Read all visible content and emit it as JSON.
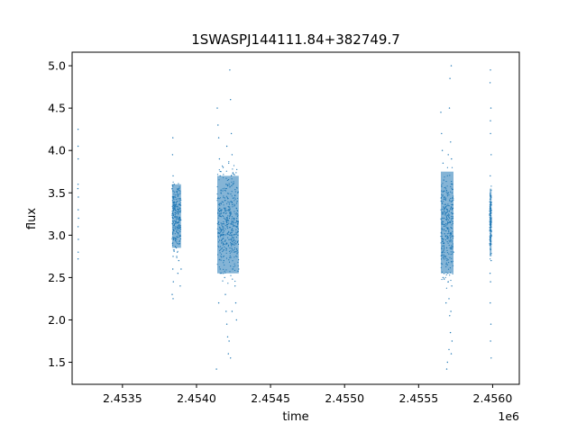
{
  "chart_data": {
    "type": "scatter",
    "title": "1SWASPJ144111.84+382749.7",
    "xlabel": "time",
    "ylabel": "flux",
    "x_offset_label": "1e6",
    "xlim": [
      2453160,
      2456180
    ],
    "ylim": [
      1.24,
      5.16
    ],
    "x_ticks": [
      2453500,
      2454000,
      2454500,
      2455000,
      2455500,
      2456000
    ],
    "x_tick_labels": [
      "2.4535",
      "2.4540",
      "2.4545",
      "2.4550",
      "2.4555",
      "2.4560"
    ],
    "y_ticks": [
      1.5,
      2.0,
      2.5,
      3.0,
      3.5,
      4.0,
      4.5,
      5.0
    ],
    "y_tick_labels": [
      "1.5",
      "2.0",
      "2.5",
      "3.0",
      "3.5",
      "4.0",
      "4.5",
      "5.0"
    ],
    "grid": false,
    "marker_color": "#1f77b4",
    "points": [
      [
        2453200,
        4.25
      ],
      [
        2453201,
        3.9
      ],
      [
        2453200,
        3.6
      ],
      [
        2453202,
        3.45
      ],
      [
        2453201,
        3.3
      ],
      [
        2453200,
        3.1
      ],
      [
        2453202,
        2.95
      ],
      [
        2453201,
        2.8
      ],
      [
        2453200,
        2.72
      ],
      [
        2453199,
        3.55
      ],
      [
        2453203,
        3.2
      ],
      [
        2453200,
        4.05
      ],
      [
        2453840,
        4.15
      ],
      [
        2453838,
        3.95
      ],
      [
        2453842,
        3.7
      ],
      [
        2453836,
        3.55
      ],
      [
        2453844,
        3.35
      ],
      [
        2453840,
        3.2
      ],
      [
        2453846,
        3.05
      ],
      [
        2453838,
        2.9
      ],
      [
        2453842,
        2.75
      ],
      [
        2453840,
        2.6
      ],
      [
        2453844,
        2.45
      ],
      [
        2453836,
        2.3
      ],
      [
        2453842,
        2.25
      ],
      [
        2453850,
        3.6
      ],
      [
        2453856,
        3.3
      ],
      [
        2453860,
        3.1
      ],
      [
        2453864,
        2.85
      ],
      [
        2453870,
        3.4
      ],
      [
        2453876,
        3.25
      ],
      [
        2453880,
        3.55
      ],
      [
        2453886,
        2.9
      ],
      [
        2453880,
        2.7
      ],
      [
        2453874,
        2.55
      ],
      [
        2453890,
        3.0
      ],
      [
        2453896,
        2.6
      ],
      [
        2453890,
        2.4
      ],
      [
        2454140,
        4.5
      ],
      [
        2454145,
        4.3
      ],
      [
        2454150,
        4.15
      ],
      [
        2454155,
        3.9
      ],
      [
        2454160,
        3.7
      ],
      [
        2454165,
        3.5
      ],
      [
        2454170,
        3.3
      ],
      [
        2454175,
        3.1
      ],
      [
        2454180,
        2.9
      ],
      [
        2454185,
        2.7
      ],
      [
        2454190,
        2.5
      ],
      [
        2454195,
        2.3
      ],
      [
        2454200,
        2.1
      ],
      [
        2454205,
        1.95
      ],
      [
        2454210,
        1.8
      ],
      [
        2454215,
        1.6
      ],
      [
        2454135,
        1.42
      ],
      [
        2454225,
        4.95
      ],
      [
        2454230,
        4.6
      ],
      [
        2454235,
        4.2
      ],
      [
        2454240,
        3.95
      ],
      [
        2454245,
        3.6
      ],
      [
        2454250,
        3.2
      ],
      [
        2454255,
        2.8
      ],
      [
        2454260,
        2.4
      ],
      [
        2454265,
        2.2
      ],
      [
        2454270,
        2.0
      ],
      [
        2454230,
        1.55
      ],
      [
        2454220,
        1.75
      ],
      [
        2454275,
        3.4
      ],
      [
        2454280,
        3.0
      ],
      [
        2454285,
        2.6
      ],
      [
        2454180,
        3.8
      ],
      [
        2454200,
        3.6
      ],
      [
        2454160,
        2.6
      ],
      [
        2454150,
        2.2
      ],
      [
        2454240,
        2.1
      ],
      [
        2454205,
        4.05
      ],
      [
        2455650,
        4.45
      ],
      [
        2455655,
        4.2
      ],
      [
        2455660,
        4.0
      ],
      [
        2455665,
        3.85
      ],
      [
        2455670,
        3.65
      ],
      [
        2455675,
        3.45
      ],
      [
        2455680,
        3.25
      ],
      [
        2455685,
        3.05
      ],
      [
        2455690,
        2.85
      ],
      [
        2455695,
        2.65
      ],
      [
        2455700,
        2.45
      ],
      [
        2455705,
        2.25
      ],
      [
        2455710,
        2.05
      ],
      [
        2455715,
        1.85
      ],
      [
        2455705,
        1.65
      ],
      [
        2455695,
        1.5
      ],
      [
        2455690,
        1.42
      ],
      [
        2455720,
        5.0
      ],
      [
        2455712,
        4.85
      ],
      [
        2455708,
        4.5
      ],
      [
        2455716,
        4.1
      ],
      [
        2455722,
        3.9
      ],
      [
        2455728,
        3.6
      ],
      [
        2455732,
        3.2
      ],
      [
        2455736,
        2.8
      ],
      [
        2455724,
        2.4
      ],
      [
        2455718,
        2.1
      ],
      [
        2455726,
        1.75
      ],
      [
        2455700,
        3.95
      ],
      [
        2455685,
        2.2
      ],
      [
        2455665,
        2.5
      ],
      [
        2455672,
        3.2
      ],
      [
        2455720,
        1.6
      ],
      [
        2455985,
        4.95
      ],
      [
        2455983,
        4.8
      ],
      [
        2455988,
        4.5
      ],
      [
        2455986,
        4.2
      ],
      [
        2455990,
        3.95
      ],
      [
        2455984,
        3.7
      ],
      [
        2455988,
        3.45
      ],
      [
        2455986,
        3.2
      ],
      [
        2455982,
        2.95
      ],
      [
        2455990,
        2.7
      ],
      [
        2455986,
        2.45
      ],
      [
        2455984,
        2.2
      ],
      [
        2455988,
        1.95
      ],
      [
        2455986,
        1.75
      ],
      [
        2455990,
        1.55
      ],
      [
        2455985,
        4.35
      ],
      [
        2455987,
        3.05
      ],
      [
        2455983,
        2.55
      ]
    ],
    "dense_bands": [
      {
        "x": [
          2454140,
          2454285
        ],
        "y": [
          2.55,
          3.7
        ]
      },
      {
        "x": [
          2455650,
          2455735
        ],
        "y": [
          2.55,
          3.75
        ]
      },
      {
        "x": [
          2453835,
          2453895
        ],
        "y": [
          2.85,
          3.6
        ]
      },
      {
        "x": [
          2455980,
          2455992
        ],
        "y": [
          2.75,
          3.55
        ]
      }
    ]
  }
}
